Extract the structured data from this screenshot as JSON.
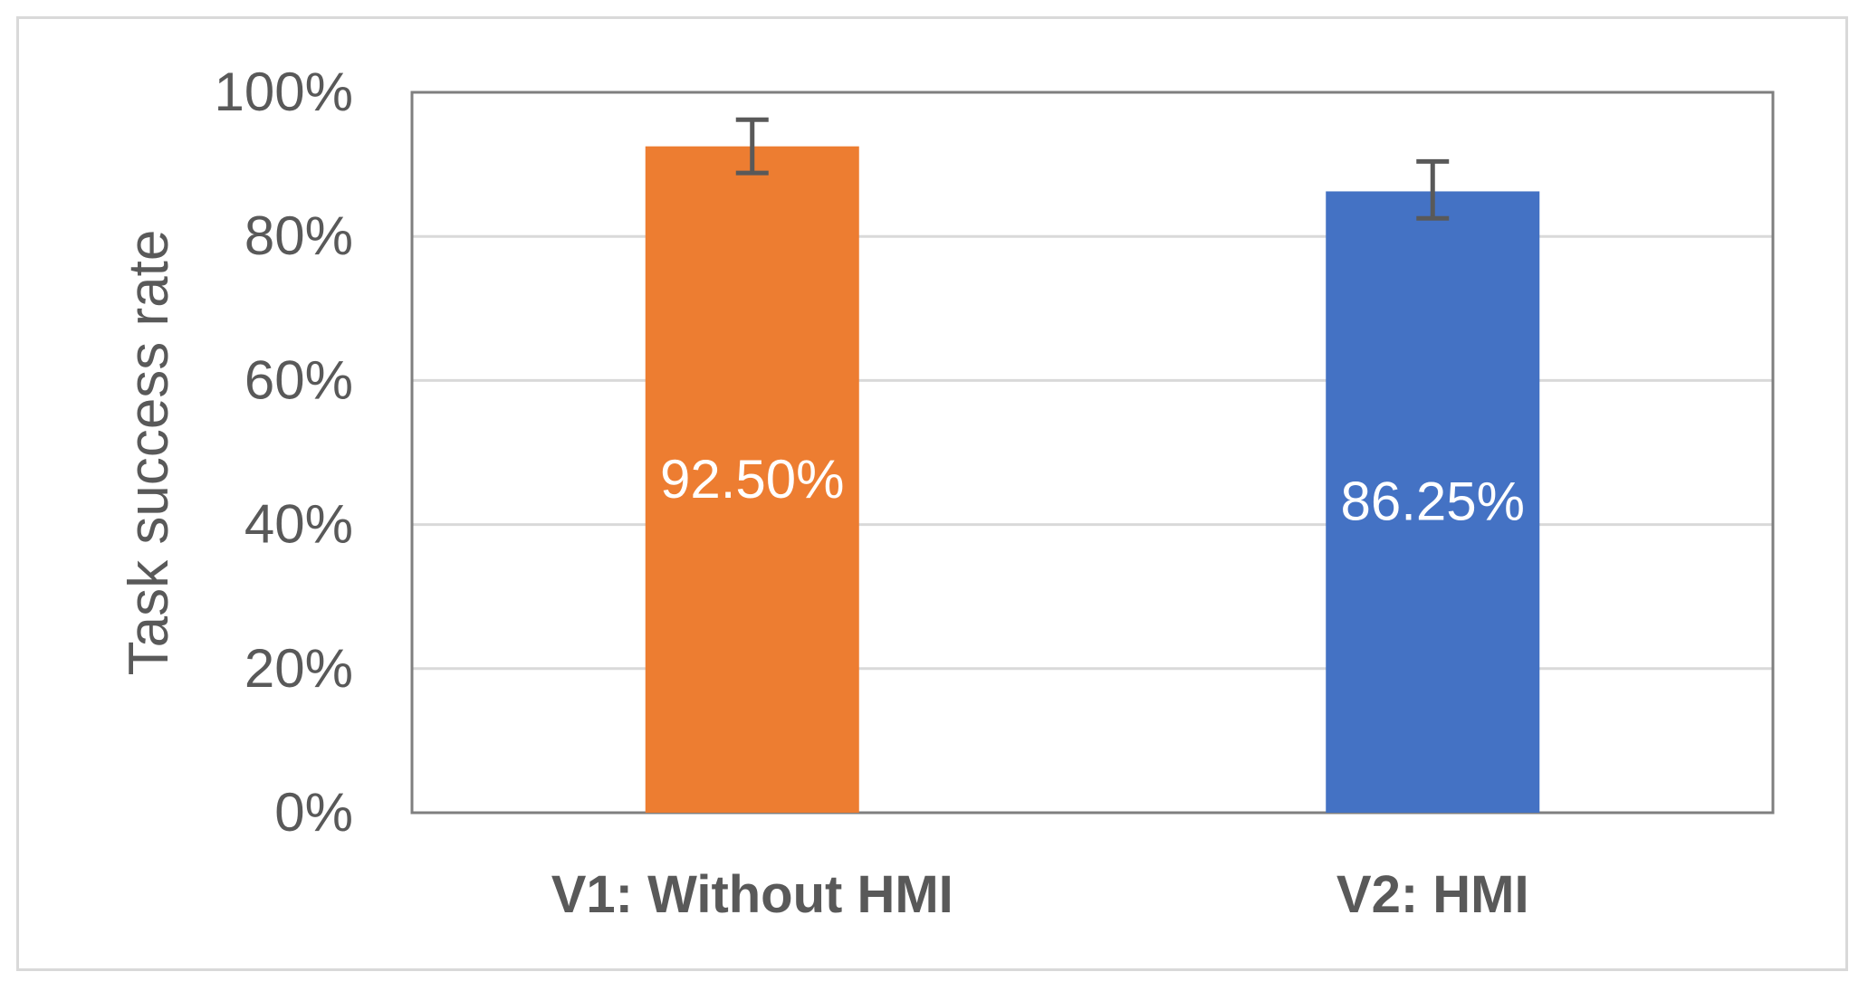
{
  "chart_data": {
    "type": "bar",
    "categories": [
      "V1: Without HMI",
      "V2: HMI"
    ],
    "values": [
      92.5,
      86.25
    ],
    "value_labels": [
      "92.50%",
      "86.25%"
    ],
    "error_bars": [
      {
        "low": 88.8,
        "high": 96.2
      },
      {
        "low": 82.5,
        "high": 90.4
      }
    ],
    "colors": [
      "#ED7D31",
      "#4472C4"
    ],
    "ylabel": "Task success rate",
    "xlabel": "",
    "ylim": [
      0,
      100
    ],
    "yticks": [
      0,
      20,
      40,
      60,
      80,
      100
    ],
    "ytick_labels": [
      "0%",
      "20%",
      "40%",
      "60%",
      "80%",
      "100%"
    ],
    "grid": true,
    "legend": false
  }
}
